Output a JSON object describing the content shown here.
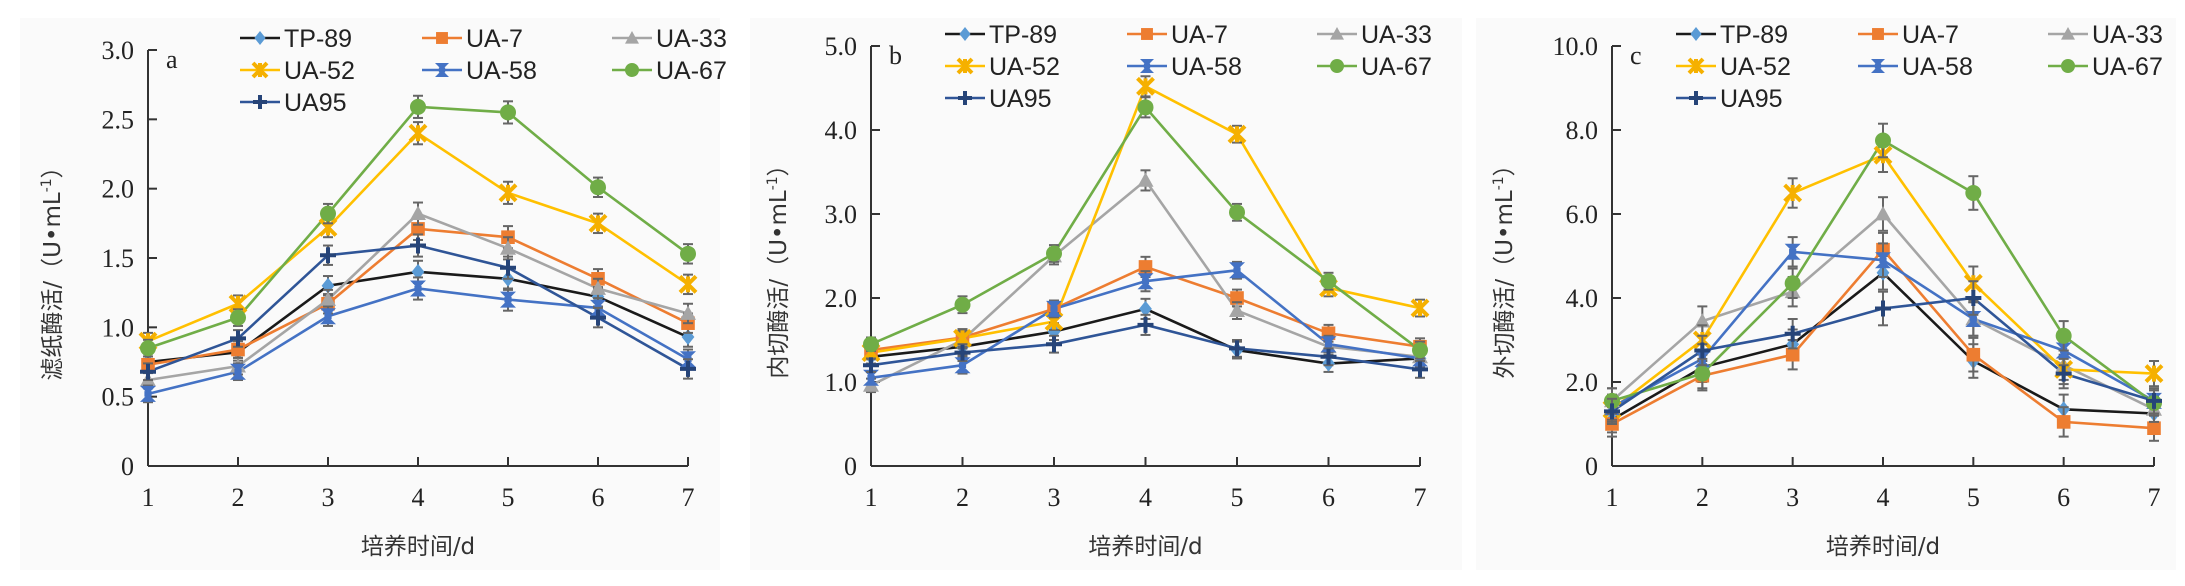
{
  "legend": {
    "entries": [
      {
        "name": "TP-89",
        "line": "#1a1a1a",
        "marker": "diamond",
        "marker_color": "#5b9bd5"
      },
      {
        "name": "UA-7",
        "line": "#ed7d31",
        "marker": "square",
        "marker_color": "#ed7d31"
      },
      {
        "name": "UA-33",
        "line": "#a5a5a5",
        "marker": "triangle",
        "marker_color": "#a5a5a5"
      },
      {
        "name": "UA-52",
        "line": "#ffc000",
        "marker": "asterisk",
        "marker_color": "#f5b000"
      },
      {
        "name": "UA-58",
        "line": "#4472c4",
        "marker": "bowtie",
        "marker_color": "#4472c4"
      },
      {
        "name": "UA-67",
        "line": "#70ad47",
        "marker": "circle",
        "marker_color": "#70ad47"
      },
      {
        "name": "UA95",
        "line": "#2f5597",
        "marker": "plus",
        "marker_color": "#264478"
      }
    ]
  },
  "chart_data": [
    {
      "type": "line",
      "panel": "a",
      "ylabel": "滤纸酶活/（U•mL-1）",
      "ylabel_main": "滤纸酶活/（U•mL",
      "ylabel_sup": "-1",
      "ylabel_close": "）",
      "xlabel": "培养时间/d",
      "x": [
        1,
        2,
        3,
        4,
        5,
        6,
        7
      ],
      "x_tick_labels": [
        "1",
        "2",
        "3",
        "4",
        "5",
        "6",
        "7"
      ],
      "ylim": [
        0,
        3.0
      ],
      "y_ticks": [
        0,
        0.5,
        1.0,
        1.5,
        2.0,
        2.5,
        3.0
      ],
      "y_tick_labels": [
        "0",
        "0.5",
        "1.0",
        "1.5",
        "2.0",
        "2.5",
        "3.0"
      ],
      "grid": false,
      "legend_position": "top",
      "error_bars": true,
      "series": [
        {
          "name": "TP-89",
          "values": [
            0.75,
            0.82,
            1.3,
            1.4,
            1.35,
            1.22,
            0.93
          ]
        },
        {
          "name": "UA-7",
          "values": [
            0.73,
            0.84,
            1.17,
            1.71,
            1.65,
            1.35,
            1.03
          ]
        },
        {
          "name": "UA-33",
          "values": [
            0.62,
            0.72,
            1.2,
            1.82,
            1.57,
            1.28,
            1.1
          ]
        },
        {
          "name": "UA-52",
          "values": [
            0.9,
            1.17,
            1.72,
            2.4,
            1.97,
            1.75,
            1.31
          ]
        },
        {
          "name": "UA-58",
          "values": [
            0.52,
            0.68,
            1.08,
            1.28,
            1.2,
            1.14,
            0.77
          ]
        },
        {
          "name": "UA-67",
          "values": [
            0.85,
            1.07,
            1.82,
            2.59,
            2.55,
            2.01,
            1.53
          ]
        },
        {
          "name": "UA95",
          "values": [
            0.68,
            0.92,
            1.52,
            1.59,
            1.43,
            1.07,
            0.7
          ]
        }
      ],
      "error": [
        0.06,
        0.06,
        0.07,
        0.08,
        0.08,
        0.07,
        0.07
      ]
    },
    {
      "type": "line",
      "panel": "b",
      "ylabel": "内切酶活/（U•mL-1）",
      "ylabel_main": "内切酶活/（U•mL",
      "ylabel_sup": "-1",
      "ylabel_close": "）",
      "xlabel": "培养时间/d",
      "x": [
        1,
        2,
        3,
        4,
        5,
        6,
        7
      ],
      "x_tick_labels": [
        "1",
        "2",
        "3",
        "4",
        "5",
        "6",
        "7"
      ],
      "ylim": [
        0,
        5.0
      ],
      "y_ticks": [
        0,
        1.0,
        2.0,
        3.0,
        4.0,
        5.0
      ],
      "y_tick_labels": [
        "0",
        "1.0",
        "2.0",
        "3.0",
        "4.0",
        "5.0"
      ],
      "grid": false,
      "legend_position": "top",
      "error_bars": true,
      "series": [
        {
          "name": "TP-89",
          "values": [
            1.3,
            1.42,
            1.6,
            1.87,
            1.38,
            1.22,
            1.28
          ]
        },
        {
          "name": "UA-7",
          "values": [
            1.38,
            1.53,
            1.87,
            2.37,
            2.0,
            1.58,
            1.42
          ]
        },
        {
          "name": "UA-33",
          "values": [
            0.96,
            1.5,
            2.5,
            3.4,
            1.85,
            1.42,
            1.3
          ]
        },
        {
          "name": "UA-52",
          "values": [
            1.35,
            1.52,
            1.72,
            4.52,
            3.95,
            2.12,
            1.88
          ]
        },
        {
          "name": "UA-58",
          "values": [
            1.05,
            1.2,
            1.87,
            2.2,
            2.33,
            1.45,
            1.28
          ]
        },
        {
          "name": "UA-67",
          "values": [
            1.45,
            1.92,
            2.53,
            4.27,
            3.02,
            2.2,
            1.38
          ]
        },
        {
          "name": "UA95",
          "values": [
            1.2,
            1.35,
            1.45,
            1.68,
            1.4,
            1.3,
            1.15
          ]
        }
      ],
      "error": [
        0.08,
        0.1,
        0.1,
        0.12,
        0.1,
        0.1,
        0.1
      ]
    },
    {
      "type": "line",
      "panel": "c",
      "ylabel": "外切酶活/（U•mL-1）",
      "ylabel_main": "外切酶活/（U•mL",
      "ylabel_sup": "-1",
      "ylabel_close": "）",
      "xlabel": "培养时间/d",
      "x": [
        1,
        2,
        3,
        4,
        5,
        6,
        7
      ],
      "x_tick_labels": [
        "1",
        "2",
        "3",
        "4",
        "5",
        "6",
        "7"
      ],
      "ylim": [
        0,
        10.0
      ],
      "y_ticks": [
        0,
        2.0,
        4.0,
        6.0,
        8.0,
        10.0
      ],
      "y_tick_labels": [
        "0",
        "2.0",
        "4.0",
        "6.0",
        "8.0",
        "10.0"
      ],
      "grid": false,
      "legend_position": "top",
      "error_bars": true,
      "series": [
        {
          "name": "TP-89",
          "values": [
            1.1,
            2.35,
            2.9,
            4.6,
            2.5,
            1.35,
            1.25
          ]
        },
        {
          "name": "UA-7",
          "values": [
            1.0,
            2.15,
            2.65,
            5.15,
            2.65,
            1.05,
            0.9
          ]
        },
        {
          "name": "UA-33",
          "values": [
            1.55,
            3.45,
            4.15,
            6.0,
            3.5,
            2.4,
            1.35
          ]
        },
        {
          "name": "UA-52",
          "values": [
            1.35,
            3.0,
            6.5,
            7.4,
            4.35,
            2.3,
            2.2
          ]
        },
        {
          "name": "UA-58",
          "values": [
            1.4,
            2.55,
            5.1,
            4.9,
            3.5,
            2.75,
            1.55
          ]
        },
        {
          "name": "UA-67",
          "values": [
            1.55,
            2.2,
            4.35,
            7.75,
            6.5,
            3.1,
            1.5
          ]
        },
        {
          "name": "UA95",
          "values": [
            1.3,
            2.75,
            3.15,
            3.75,
            4.0,
            2.2,
            1.55
          ]
        }
      ],
      "error": [
        0.3,
        0.35,
        0.35,
        0.4,
        0.4,
        0.35,
        0.3
      ]
    }
  ]
}
